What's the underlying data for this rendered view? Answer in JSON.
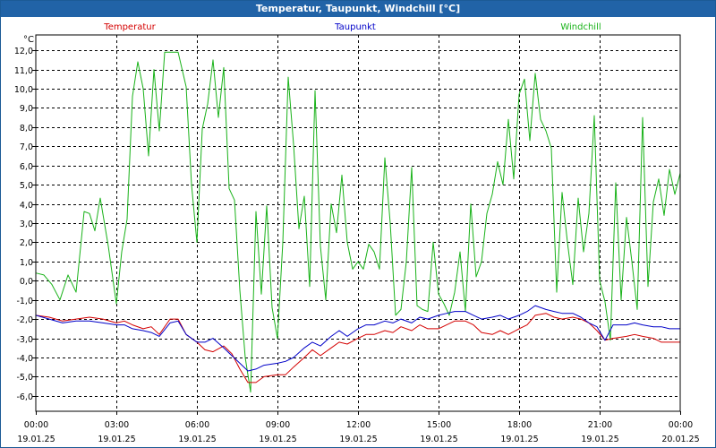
{
  "window": {
    "title": "Temperatur, Taupunkt, Windchill [°C]"
  },
  "colors": {
    "temperature": "#d40000",
    "dewpoint": "#0000c8",
    "windchill": "#19b219",
    "frame": "#000000",
    "grid": "#000000",
    "titlebar": "#2163a7"
  },
  "chart_data": {
    "type": "line",
    "title": "Temperatur, Taupunkt, Windchill [°C]",
    "ylabel": "°C",
    "xlabel": "",
    "ylim": [
      -6.8,
      12.8
    ],
    "y_ticks": [
      -6.0,
      -5.0,
      -4.0,
      -3.0,
      -2.0,
      -1.0,
      0.0,
      1.0,
      2.0,
      3.0,
      4.0,
      5.0,
      6.0,
      7.0,
      8.0,
      9.0,
      10.0,
      11.0,
      12.0
    ],
    "y_tick_labels": [
      "-6,0",
      "-5,0",
      "-4,0",
      "-3,0",
      "-2,0",
      "-1,0",
      "0,0",
      "1,0",
      "2,0",
      "3,0",
      "4,0",
      "5,0",
      "6,0",
      "7,0",
      "8,0",
      "9,0",
      "10,0",
      "11,0",
      "12,0"
    ],
    "xlim": [
      0,
      24
    ],
    "x_ticks": [
      {
        "h": 0,
        "time": "00:00",
        "date": "19.01.25"
      },
      {
        "h": 3,
        "time": "03:00",
        "date": "19.01.25"
      },
      {
        "h": 6,
        "time": "06:00",
        "date": "19.01.25"
      },
      {
        "h": 9,
        "time": "09:00",
        "date": "19.01.25"
      },
      {
        "h": 12,
        "time": "12:00",
        "date": "19.01.25"
      },
      {
        "h": 15,
        "time": "15:00",
        "date": "19.01.25"
      },
      {
        "h": 18,
        "time": "18:00",
        "date": "19.01.25"
      },
      {
        "h": 21,
        "time": "21:00",
        "date": "19.01.25"
      },
      {
        "h": 24,
        "time": "00:00",
        "date": "20.01.25"
      }
    ],
    "grid": true,
    "series": [
      {
        "name": "Temperatur",
        "key": "temperature",
        "x": [
          0,
          0.5,
          1,
          1.5,
          2,
          2.5,
          3,
          3.3,
          3.6,
          4,
          4.3,
          4.6,
          5,
          5.3,
          5.6,
          6,
          6.3,
          6.6,
          7,
          7.3,
          7.6,
          7.9,
          8.2,
          8.5,
          9,
          9.3,
          9.6,
          10,
          10.3,
          10.6,
          11,
          11.3,
          11.6,
          12,
          12.3,
          12.6,
          13,
          13.3,
          13.6,
          14,
          14.3,
          14.6,
          15,
          15.3,
          15.6,
          16,
          16.3,
          16.6,
          17,
          17.3,
          17.6,
          18,
          18.3,
          18.6,
          19,
          19.3,
          19.6,
          20,
          20.3,
          20.6,
          20.9,
          21.2,
          21.5,
          22,
          22.3,
          22.6,
          23,
          23.3,
          23.6,
          24
        ],
        "values": [
          -1.8,
          -1.9,
          -2.1,
          -2.0,
          -1.9,
          -2.0,
          -2.2,
          -2.1,
          -2.3,
          -2.5,
          -2.4,
          -2.8,
          -2.0,
          -2.0,
          -2.8,
          -3.2,
          -3.6,
          -3.7,
          -3.4,
          -3.8,
          -4.6,
          -5.3,
          -5.3,
          -5.0,
          -4.9,
          -4.9,
          -4.5,
          -4.0,
          -3.6,
          -3.9,
          -3.5,
          -3.2,
          -3.3,
          -3.0,
          -2.8,
          -2.8,
          -2.6,
          -2.7,
          -2.4,
          -2.6,
          -2.3,
          -2.5,
          -2.5,
          -2.3,
          -2.1,
          -2.1,
          -2.3,
          -2.7,
          -2.8,
          -2.6,
          -2.8,
          -2.5,
          -2.3,
          -1.8,
          -1.7,
          -1.9,
          -2.0,
          -1.9,
          -2.0,
          -2.2,
          -2.6,
          -3.1,
          -3.0,
          -2.9,
          -2.8,
          -2.9,
          -3.0,
          -3.2,
          -3.2,
          -3.2
        ]
      },
      {
        "name": "Taupunkt",
        "key": "dewpoint",
        "x": [
          0,
          0.5,
          1,
          1.5,
          2,
          2.5,
          3,
          3.3,
          3.6,
          4,
          4.3,
          4.6,
          5,
          5.3,
          5.6,
          6,
          6.3,
          6.6,
          7,
          7.3,
          7.6,
          7.9,
          8.2,
          8.5,
          9,
          9.3,
          9.6,
          10,
          10.3,
          10.6,
          11,
          11.3,
          11.6,
          12,
          12.3,
          12.6,
          13,
          13.3,
          13.6,
          14,
          14.3,
          14.6,
          15,
          15.3,
          15.6,
          16,
          16.3,
          16.6,
          17,
          17.3,
          17.6,
          18,
          18.3,
          18.6,
          19,
          19.3,
          19.6,
          20,
          20.3,
          20.6,
          20.9,
          21.2,
          21.5,
          22,
          22.3,
          22.6,
          23,
          23.3,
          23.6,
          24
        ],
        "values": [
          -1.8,
          -2.0,
          -2.2,
          -2.1,
          -2.1,
          -2.2,
          -2.3,
          -2.3,
          -2.5,
          -2.6,
          -2.7,
          -2.9,
          -2.2,
          -2.1,
          -2.8,
          -3.2,
          -3.2,
          -3.0,
          -3.5,
          -3.9,
          -4.3,
          -4.7,
          -4.6,
          -4.4,
          -4.3,
          -4.2,
          -4.0,
          -3.5,
          -3.2,
          -3.4,
          -2.9,
          -2.6,
          -2.9,
          -2.5,
          -2.3,
          -2.3,
          -2.1,
          -2.2,
          -2.0,
          -2.2,
          -1.9,
          -2.0,
          -1.8,
          -1.7,
          -1.6,
          -1.6,
          -1.8,
          -2.0,
          -1.9,
          -1.8,
          -2.0,
          -1.8,
          -1.6,
          -1.3,
          -1.5,
          -1.6,
          -1.7,
          -1.7,
          -1.9,
          -2.2,
          -2.4,
          -3.1,
          -2.3,
          -2.3,
          -2.2,
          -2.3,
          -2.4,
          -2.4,
          -2.5,
          -2.5
        ]
      },
      {
        "name": "Windchill",
        "key": "windchill",
        "x": [
          0,
          0.3,
          0.6,
          0.9,
          1.2,
          1.5,
          1.8,
          2.0,
          2.2,
          2.4,
          2.7,
          3.0,
          3.2,
          3.4,
          3.6,
          3.8,
          4.0,
          4.2,
          4.4,
          4.6,
          4.8,
          5.0,
          5.3,
          5.6,
          5.8,
          6.0,
          6.2,
          6.4,
          6.6,
          6.8,
          7.0,
          7.2,
          7.4,
          7.6,
          7.8,
          8.0,
          8.2,
          8.4,
          8.6,
          8.8,
          9.0,
          9.2,
          9.4,
          9.6,
          9.8,
          10.0,
          10.2,
          10.4,
          10.6,
          10.8,
          11.0,
          11.2,
          11.4,
          11.6,
          11.8,
          12.0,
          12.2,
          12.4,
          12.6,
          12.8,
          13.0,
          13.2,
          13.4,
          13.6,
          13.8,
          14.0,
          14.2,
          14.4,
          14.6,
          14.8,
          15.0,
          15.2,
          15.4,
          15.6,
          15.8,
          16.0,
          16.2,
          16.4,
          16.6,
          16.8,
          17.0,
          17.2,
          17.4,
          17.6,
          17.8,
          18.0,
          18.2,
          18.4,
          18.6,
          18.8,
          19.0,
          19.2,
          19.4,
          19.6,
          19.8,
          20.0,
          20.2,
          20.4,
          20.6,
          20.8,
          21.0,
          21.2,
          21.4,
          21.6,
          21.8,
          22.0,
          22.2,
          22.4,
          22.6,
          22.8,
          23.0,
          23.2,
          23.4,
          23.6,
          23.8,
          24.0
        ],
        "values": [
          0.4,
          0.3,
          -0.2,
          -1.0,
          0.3,
          -0.6,
          3.6,
          3.5,
          2.6,
          4.3,
          1.8,
          -1.2,
          1.5,
          3.2,
          9.6,
          11.4,
          10.0,
          6.5,
          11.0,
          7.8,
          11.9,
          11.9,
          11.9,
          10.1,
          5.0,
          2.0,
          7.9,
          9.2,
          11.5,
          8.5,
          11.1,
          4.8,
          4.2,
          -0.5,
          -4.0,
          -5.8,
          3.6,
          -0.7,
          3.9,
          -1.4,
          -3.0,
          2.0,
          10.6,
          7.1,
          2.7,
          4.4,
          -0.3,
          9.9,
          1.8,
          -1.0,
          4.0,
          2.5,
          5.5,
          2.0,
          0.6,
          1.0,
          0.6,
          1.9,
          1.5,
          0.6,
          6.4,
          3.0,
          -1.8,
          -1.5,
          1.0,
          5.9,
          -1.3,
          -1.5,
          -1.6,
          2.0,
          -0.7,
          -1.2,
          -1.8,
          -0.6,
          1.5,
          -1.6,
          4.0,
          0.2,
          1.0,
          3.5,
          4.5,
          6.2,
          5.0,
          8.4,
          5.3,
          9.7,
          10.5,
          7.3,
          10.8,
          8.4,
          7.8,
          6.9,
          -0.6,
          4.6,
          2.0,
          -0.2,
          4.3,
          1.5,
          3.5,
          8.6,
          0.0,
          -1.1,
          -3.1,
          5.1,
          -1.0,
          3.3,
          1.0,
          -1.5,
          8.5,
          -0.3,
          4.1,
          5.3,
          3.4,
          5.8,
          4.5,
          5.6
        ]
      }
    ]
  }
}
